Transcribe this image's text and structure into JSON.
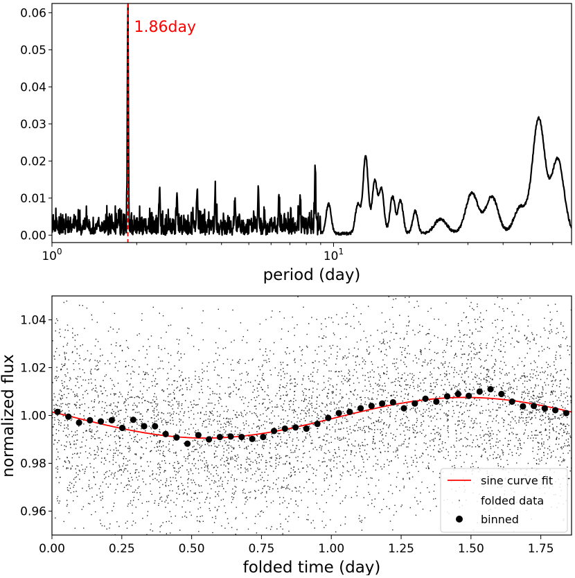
{
  "chart_data": [
    {
      "type": "line",
      "name": "periodogram",
      "xscale": "log",
      "xlim": [
        1,
        70
      ],
      "ylim": [
        -0.002,
        0.0625
      ],
      "xlabel": "period (day)",
      "ylabel": "",
      "yticks": [
        0.0,
        0.01,
        0.02,
        0.03,
        0.04,
        0.05,
        0.06
      ],
      "ytick_labels": [
        "0.00",
        "0.01",
        "0.02",
        "0.03",
        "0.04",
        "0.05",
        "0.06"
      ],
      "xtick_labels": [
        {
          "base": "10",
          "exp": "0",
          "value": 1
        },
        {
          "base": "10",
          "exp": "1",
          "value": 10
        }
      ],
      "peak_marker": {
        "period": 1.86,
        "label": "1.86day",
        "color": "#ff0000"
      },
      "peaks": [
        {
          "period": 1.86,
          "power": 0.06
        },
        {
          "period": 2.41,
          "power": 0.011
        },
        {
          "period": 2.78,
          "power": 0.01
        },
        {
          "period": 3.28,
          "power": 0.012
        },
        {
          "period": 3.8,
          "power": 0.009
        },
        {
          "period": 4.47,
          "power": 0.008
        },
        {
          "period": 5.4,
          "power": 0.01
        },
        {
          "period": 6.4,
          "power": 0.008
        },
        {
          "period": 7.6,
          "power": 0.009
        },
        {
          "period": 8.6,
          "power": 0.017
        },
        {
          "period": 9.6,
          "power": 0.008
        },
        {
          "period": 12.2,
          "power": 0.008
        },
        {
          "period": 13.0,
          "power": 0.021
        },
        {
          "period": 14.0,
          "power": 0.014
        },
        {
          "period": 14.8,
          "power": 0.012
        },
        {
          "period": 16.2,
          "power": 0.01
        },
        {
          "period": 17.3,
          "power": 0.009
        },
        {
          "period": 19.5,
          "power": 0.006
        },
        {
          "period": 24.0,
          "power": 0.004
        },
        {
          "period": 31.0,
          "power": 0.011
        },
        {
          "period": 36.5,
          "power": 0.01
        },
        {
          "period": 46.0,
          "power": 0.007
        },
        {
          "period": 53.5,
          "power": 0.031
        },
        {
          "period": 62.5,
          "power": 0.02
        }
      ],
      "series_color": "#000000"
    },
    {
      "type": "scatter",
      "name": "folded light curve",
      "xlim": [
        0,
        1.86
      ],
      "ylim": [
        0.95,
        1.05
      ],
      "xlabel": "folded time (day)",
      "ylabel": "normalized flux",
      "xticks": [
        0.0,
        0.25,
        0.5,
        0.75,
        1.0,
        1.25,
        1.5,
        1.75
      ],
      "xtick_labels": [
        "0.00",
        "0.25",
        "0.50",
        "0.75",
        "1.00",
        "1.25",
        "1.50",
        "1.75"
      ],
      "yticks": [
        0.96,
        0.98,
        1.0,
        1.02,
        1.04
      ],
      "ytick_labels": [
        "0.96",
        "0.98",
        "1.00",
        "1.02",
        "1.04"
      ],
      "sine_fit": {
        "mean": 0.99905,
        "amplitude": 0.0085,
        "period": 1.86,
        "min_at": 0.55,
        "color": "#ff0000"
      },
      "folded_data": {
        "count": 5000,
        "center": 0.999,
        "spread": 0.03
      },
      "binned": {
        "x": [
          0.02,
          0.059,
          0.097,
          0.136,
          0.175,
          0.214,
          0.252,
          0.291,
          0.33,
          0.369,
          0.407,
          0.446,
          0.485,
          0.524,
          0.562,
          0.601,
          0.64,
          0.679,
          0.717,
          0.756,
          0.795,
          0.834,
          0.872,
          0.911,
          0.95,
          0.989,
          1.027,
          1.066,
          1.105,
          1.144,
          1.182,
          1.221,
          1.26,
          1.299,
          1.337,
          1.376,
          1.415,
          1.454,
          1.492,
          1.531,
          1.57,
          1.609,
          1.647,
          1.686,
          1.725,
          1.764,
          1.802,
          1.841
        ],
        "y": [
          1.0015,
          0.9995,
          0.997,
          0.998,
          0.9975,
          0.998,
          0.9948,
          0.9982,
          0.9955,
          0.9955,
          0.9922,
          0.9908,
          0.9882,
          0.9918,
          0.99,
          0.991,
          0.9912,
          0.991,
          0.9902,
          0.991,
          0.9935,
          0.9945,
          0.995,
          0.9945,
          0.9965,
          0.999,
          1.001,
          1.0015,
          1.003,
          1.004,
          1.005,
          1.0055,
          1.003,
          1.005,
          1.007,
          1.0058,
          1.008,
          1.009,
          1.0082,
          1.01,
          1.011,
          1.009,
          1.0058,
          1.0038,
          1.004,
          1.003,
          1.0022,
          1.001
        ]
      },
      "legend": {
        "placement": "lower-right",
        "entries": [
          {
            "label": "sine curve fit",
            "kind": "line",
            "color": "#ff0000"
          },
          {
            "label": "folded data",
            "kind": "dots",
            "color": "#000000"
          },
          {
            "label": "binned",
            "kind": "marker",
            "color": "#000000"
          }
        ]
      }
    }
  ]
}
